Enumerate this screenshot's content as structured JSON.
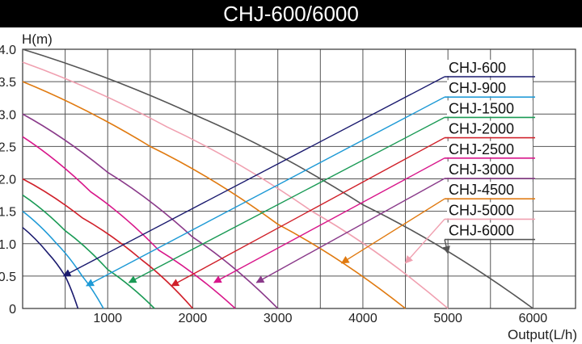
{
  "chart_data": {
    "type": "line",
    "title": "CHJ-600/6000",
    "xlabel": "Output(L/h)",
    "ylabel": "H(m)",
    "xlim": [
      0,
      6500
    ],
    "ylim": [
      0,
      4.0
    ],
    "x_ticks": [
      1000,
      2000,
      3000,
      4000,
      5000,
      6000
    ],
    "y_ticks": [
      "0",
      "0.5",
      "1.0",
      "1.5",
      "2.0",
      "2.5",
      "3.0",
      "3.5",
      "4.0"
    ],
    "grid": true,
    "legend_position": "right",
    "series": [
      {
        "name": "CHJ-600",
        "color": "#1a1a6e",
        "points": [
          [
            0,
            1.25
          ],
          [
            300,
            0.85
          ],
          [
            500,
            0.5
          ],
          [
            650,
            0
          ]
        ]
      },
      {
        "name": "CHJ-900",
        "color": "#1e9ad6",
        "points": [
          [
            0,
            1.5
          ],
          [
            400,
            1.0
          ],
          [
            700,
            0.5
          ],
          [
            950,
            0
          ]
        ]
      },
      {
        "name": "CHJ-1500",
        "color": "#1a9a55",
        "points": [
          [
            0,
            1.75
          ],
          [
            500,
            1.2
          ],
          [
            1000,
            0.6
          ],
          [
            1550,
            0
          ]
        ]
      },
      {
        "name": "CHJ-2000",
        "color": "#d0202a",
        "points": [
          [
            0,
            2.0
          ],
          [
            700,
            1.4
          ],
          [
            1400,
            0.75
          ],
          [
            2000,
            0
          ]
        ]
      },
      {
        "name": "CHJ-2500",
        "color": "#d8168a",
        "points": [
          [
            0,
            2.65
          ],
          [
            800,
            1.8
          ],
          [
            1600,
            0.9
          ],
          [
            2500,
            0
          ]
        ]
      },
      {
        "name": "CHJ-3000",
        "color": "#8a3a8a",
        "points": [
          [
            0,
            3.0
          ],
          [
            1000,
            2.1
          ],
          [
            2000,
            1.1
          ],
          [
            3000,
            0
          ]
        ]
      },
      {
        "name": "CHJ-4500",
        "color": "#e07a10",
        "points": [
          [
            0,
            3.5
          ],
          [
            1500,
            2.5
          ],
          [
            3000,
            1.3
          ],
          [
            4500,
            0
          ]
        ]
      },
      {
        "name": "CHJ-5000",
        "color": "#f0a0b0",
        "points": [
          [
            0,
            3.8
          ],
          [
            1700,
            2.8
          ],
          [
            3400,
            1.5
          ],
          [
            5000,
            0
          ]
        ]
      },
      {
        "name": "CHJ-6000",
        "color": "#555555",
        "points": [
          [
            0,
            4.0
          ],
          [
            2000,
            3.0
          ],
          [
            4000,
            1.6
          ],
          [
            6000,
            0
          ]
        ]
      }
    ],
    "legend_arrow_targets": [
      [
        480,
        0.5
      ],
      [
        750,
        0.35
      ],
      [
        1250,
        0.4
      ],
      [
        1750,
        0.35
      ],
      [
        2250,
        0.4
      ],
      [
        2750,
        0.4
      ],
      [
        3750,
        0.7
      ],
      [
        4500,
        0.7
      ],
      [
        5000,
        0.85
      ]
    ]
  }
}
